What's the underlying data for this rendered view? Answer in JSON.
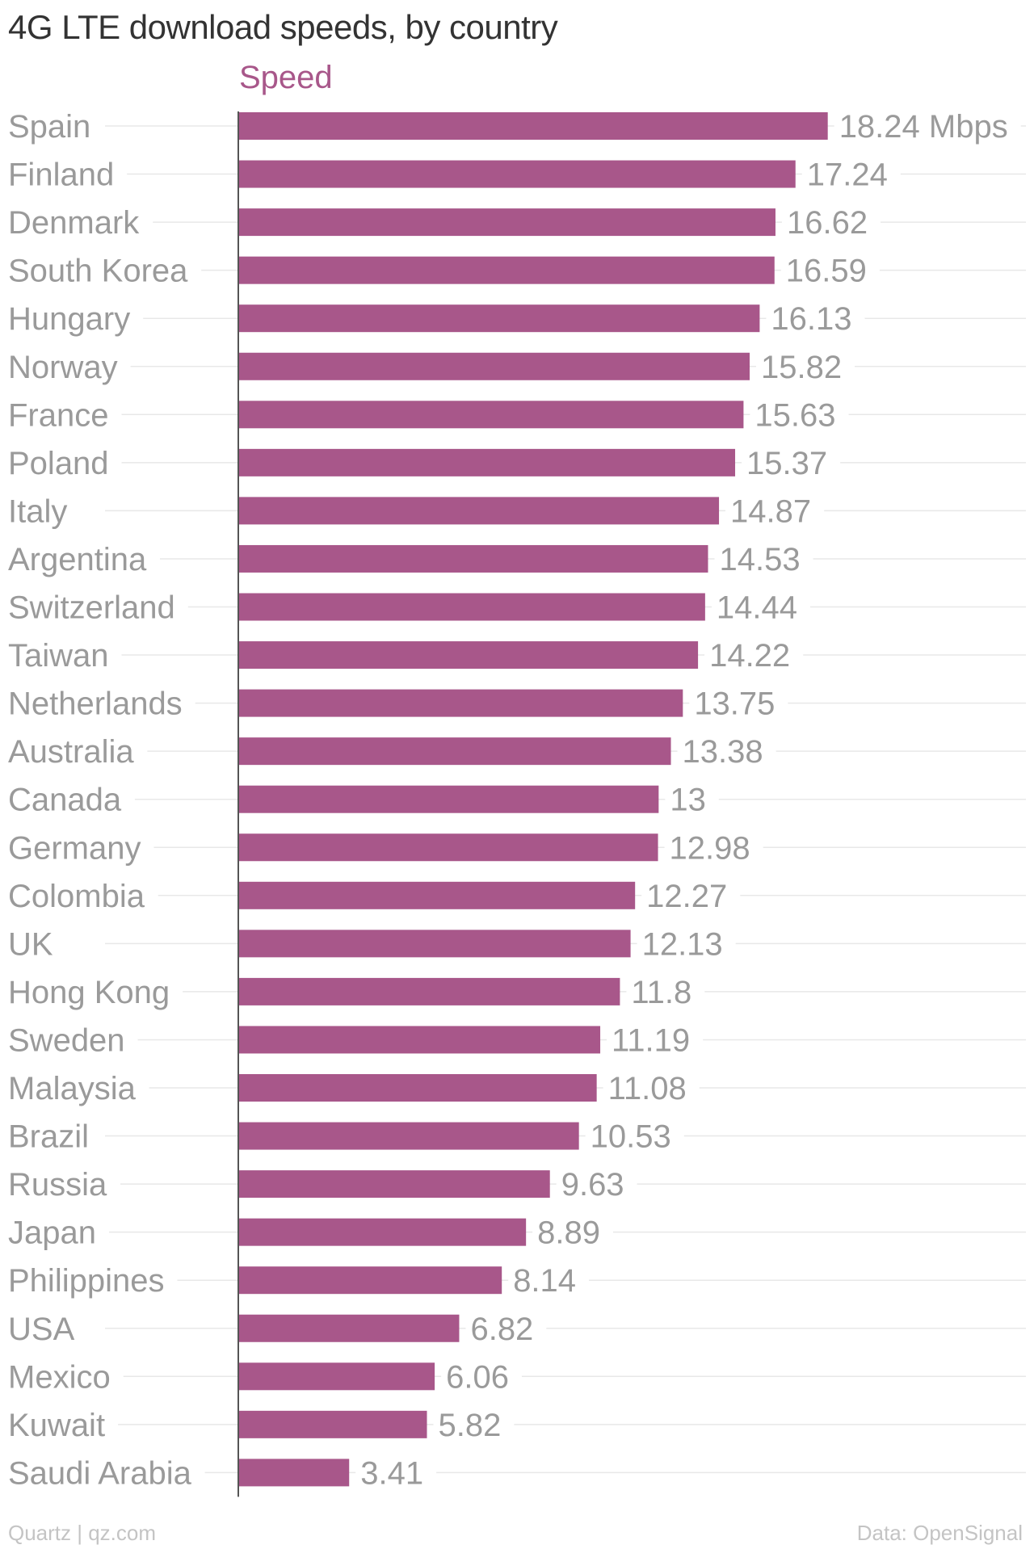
{
  "title": "4G LTE download speeds, by country",
  "footer": {
    "source": "Quartz | qz.com",
    "credit": "Data: OpenSignal"
  },
  "colors": {
    "bar": "#a8578a",
    "text": "#9a9a9a",
    "title": "#333333",
    "grid": "#e8e8e8",
    "axis": "#555555"
  },
  "chart_data": {
    "type": "bar",
    "orientation": "horizontal",
    "categories": [
      "Spain",
      "Finland",
      "Denmark",
      "South Korea",
      "Hungary",
      "Norway",
      "France",
      "Poland",
      "Italy",
      "Argentina",
      "Switzerland",
      "Taiwan",
      "Netherlands",
      "Australia",
      "Canada",
      "Germany",
      "Colombia",
      "UK",
      "Hong Kong",
      "Sweden",
      "Malaysia",
      "Brazil",
      "Russia",
      "Japan",
      "Philippines",
      "USA",
      "Mexico",
      "Kuwait",
      "Saudi Arabia"
    ],
    "series": [
      {
        "name": "Speed",
        "values": [
          18.24,
          17.24,
          16.62,
          16.59,
          16.13,
          15.82,
          15.63,
          15.37,
          14.87,
          14.53,
          14.44,
          14.22,
          13.75,
          13.38,
          13,
          12.98,
          12.27,
          12.13,
          11.8,
          11.19,
          11.08,
          10.53,
          9.63,
          8.89,
          8.14,
          6.82,
          6.06,
          5.82,
          3.41
        ],
        "labels": [
          "18.24 Mbps",
          "17.24",
          "16.62",
          "16.59",
          "16.13",
          "15.82",
          "15.63",
          "15.37",
          "14.87",
          "14.53",
          "14.44",
          "14.22",
          "13.75",
          "13.38",
          "13",
          "12.98",
          "12.27",
          "12.13",
          "11.8",
          "11.19",
          "11.08",
          "10.53",
          "9.63",
          "8.89",
          "8.14",
          "6.82",
          "6.06",
          "5.82",
          "3.41"
        ]
      }
    ],
    "unit": "Mbps",
    "xlim": [
      0,
      20
    ],
    "grid": true,
    "legend": "top-left"
  }
}
